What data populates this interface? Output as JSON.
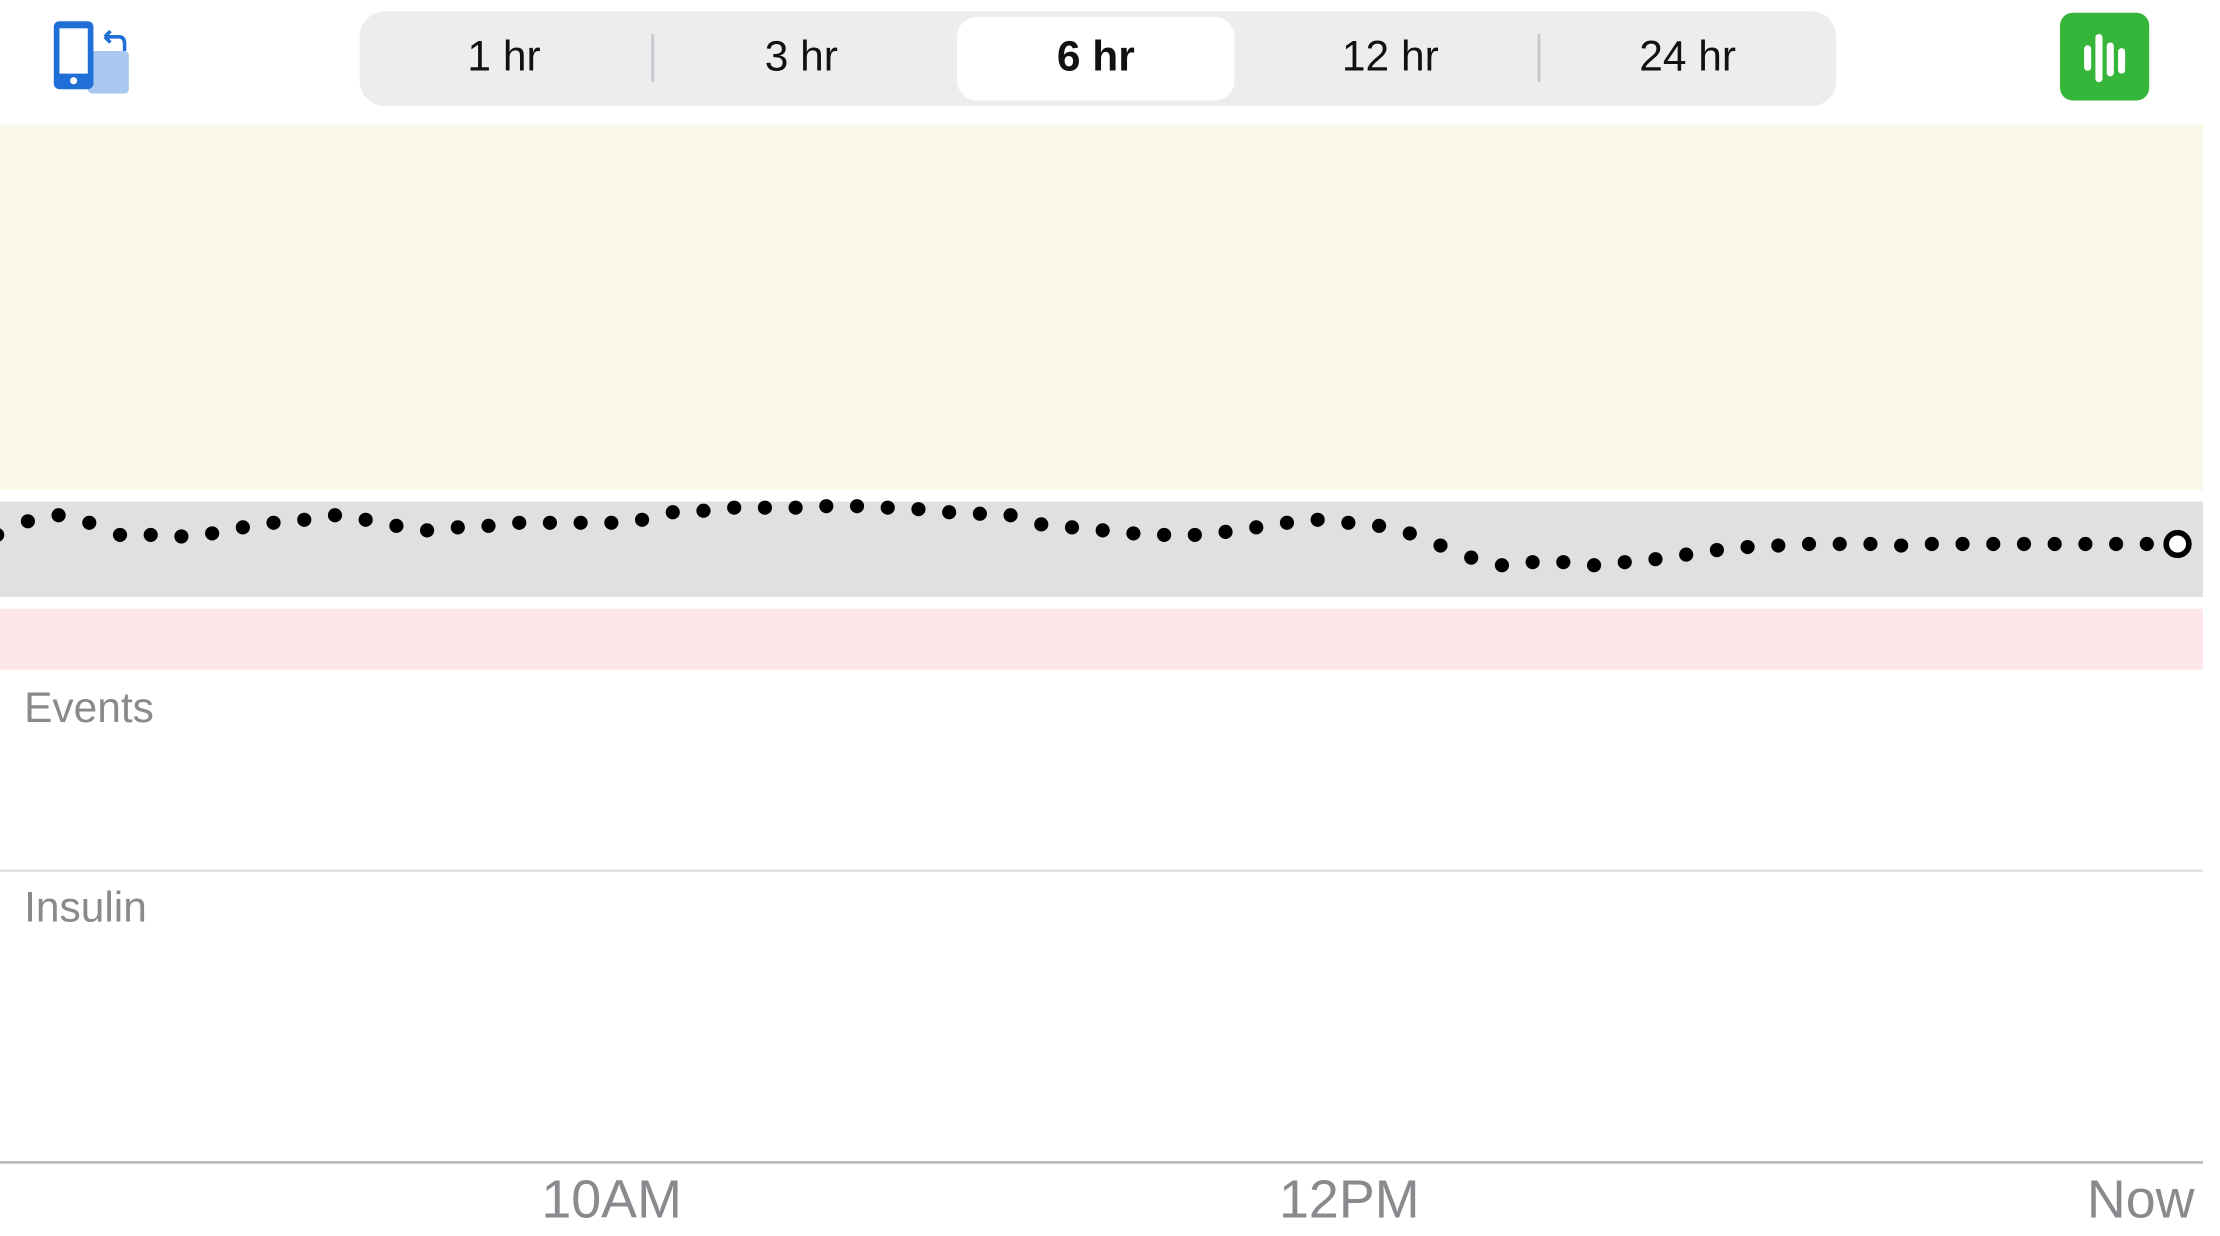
{
  "header": {
    "segments": [
      "1 hr",
      "3 hr",
      "6 hr",
      "12 hr",
      "24 hr"
    ],
    "selected": 2
  },
  "glucose": {
    "values": [
      129,
      138,
      142,
      137,
      129,
      129,
      128,
      130,
      134,
      137,
      139,
      142,
      139,
      135,
      132,
      134,
      135,
      137,
      137,
      137,
      137,
      139,
      144,
      145,
      147,
      147,
      147,
      148,
      148,
      147,
      146,
      144,
      143,
      142,
      136,
      134,
      132,
      130,
      129,
      129,
      131,
      134,
      137,
      139,
      137,
      135,
      130,
      122,
      114,
      109,
      111,
      111,
      109,
      111,
      113,
      116,
      119,
      121,
      122,
      123,
      123,
      123,
      122,
      123,
      123,
      123,
      123,
      123,
      123,
      123,
      123,
      123
    ],
    "ylim": [
      40,
      400
    ],
    "target_range": [
      88,
      151
    ]
  },
  "sections": [
    "Events",
    "Insulin"
  ],
  "time_axis": [
    "10AM",
    "12PM",
    "Now"
  ]
}
